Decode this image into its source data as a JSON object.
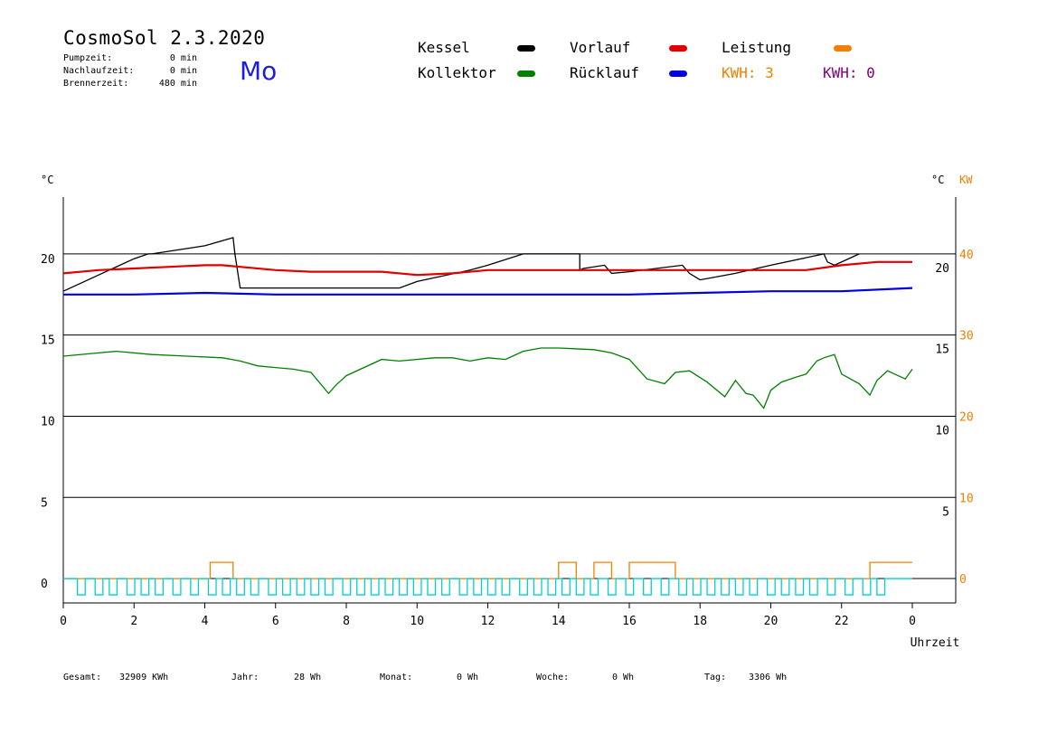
{
  "header": {
    "title": "CosmoSol 2.3.2020",
    "day": "Mo",
    "params": [
      {
        "label": "Pumpzeit:",
        "value": "0 min"
      },
      {
        "label": "Nachlaufzeit:",
        "value": "0 min"
      },
      {
        "label": "Brennerzeit:",
        "value": "480 min"
      }
    ]
  },
  "legend": [
    {
      "name": "Kessel",
      "color": "#000000"
    },
    {
      "name": "Vorlauf",
      "color": "#e00000"
    },
    {
      "name": "Leistung",
      "color": "#f08000"
    },
    {
      "name": "Kollektor",
      "color": "#008000"
    },
    {
      "name": "Rücklauf",
      "color": "#0000e0"
    }
  ],
  "kwh": [
    {
      "text": "KWH: 3",
      "color": "#f08000"
    },
    {
      "text": "KWH: 0",
      "color": "#800080"
    }
  ],
  "footer": {
    "gesamt_label": "Gesamt:",
    "gesamt_value": "32909 KWh",
    "jahr_label": "Jahr:",
    "jahr_value": "28 Wh",
    "monat_label": "Monat:",
    "monat_value": "0 Wh",
    "woche_label": "Woche:",
    "woche_value": "0 Wh",
    "tag_label": "Tag:",
    "tag_value": "3306 Wh"
  },
  "chart_data": {
    "type": "line",
    "left_axis": {
      "unit": "°C",
      "ticks": [
        "20",
        "15",
        "10",
        "5",
        "0"
      ],
      "range": [
        -1.5,
        23.5
      ]
    },
    "right_axis_temp": {
      "unit": "°C",
      "ticks": [
        "20",
        "15",
        "10",
        "5"
      ]
    },
    "right_axis_power": {
      "unit": "KW",
      "ticks": [
        "40",
        "30",
        "20",
        "10",
        "0"
      ],
      "range": [
        -3,
        47
      ]
    },
    "x_axis": {
      "label": "Uhrzeit",
      "ticks": [
        "0",
        "2",
        "4",
        "6",
        "8",
        "10",
        "12",
        "14",
        "16",
        "18",
        "20",
        "22",
        "0"
      ],
      "range": [
        0,
        24
      ]
    },
    "grid_lines_at": [
      20,
      15,
      10,
      5,
      0
    ],
    "series": [
      {
        "name": "Kessel",
        "color": "#000000",
        "x": [
          0,
          1,
          2,
          2.4,
          2.5,
          4,
          4.8,
          4.85,
          5,
          9.5,
          10,
          11.5,
          12,
          13,
          13.3,
          14.6,
          14.6,
          14.7,
          15.3,
          15.5,
          16,
          17.5,
          17.7,
          18,
          19,
          20,
          21.5,
          21.6,
          21.8,
          22.5
        ],
        "y": [
          17.7,
          18.7,
          19.7,
          20.0,
          20.0,
          20.5,
          21.0,
          20.0,
          17.9,
          17.9,
          18.3,
          19.0,
          19.3,
          20.0,
          20.0,
          20.0,
          19.0,
          19.1,
          19.3,
          18.8,
          18.9,
          19.3,
          18.8,
          18.4,
          18.8,
          19.3,
          20.0,
          19.5,
          19.3,
          20.0
        ]
      },
      {
        "name": "Vorlauf",
        "color": "#e00000",
        "x": [
          0,
          1,
          2,
          3,
          4,
          4.5,
          5,
          6,
          7,
          9,
          10,
          11,
          12,
          13,
          14,
          15,
          16,
          17,
          18,
          19,
          20,
          21,
          22,
          23,
          24
        ],
        "y": [
          18.8,
          19.0,
          19.1,
          19.2,
          19.3,
          19.3,
          19.2,
          19.0,
          18.9,
          18.9,
          18.7,
          18.8,
          19.0,
          19.0,
          19.0,
          19.0,
          19.0,
          19.0,
          19.0,
          19.0,
          19.0,
          19.0,
          19.3,
          19.5,
          19.5
        ]
      },
      {
        "name": "Rücklauf",
        "color": "#0000e0",
        "x": [
          0,
          2,
          4,
          6,
          8,
          10,
          12,
          14,
          16,
          18,
          20,
          22,
          24
        ],
        "y": [
          17.5,
          17.5,
          17.6,
          17.5,
          17.5,
          17.5,
          17.5,
          17.5,
          17.5,
          17.6,
          17.7,
          17.7,
          17.9
        ]
      },
      {
        "name": "Kollektor",
        "color": "#008000",
        "x": [
          0,
          1,
          1.5,
          2.5,
          3.5,
          4.5,
          5,
          5.5,
          6,
          6.5,
          7,
          7.5,
          7.7,
          8,
          9,
          9.5,
          10.5,
          11,
          11.5,
          12,
          12.5,
          13,
          13.5,
          14,
          15,
          15.5,
          16,
          16.5,
          17,
          17.3,
          17.7,
          18.2,
          18.7,
          19,
          19.3,
          19.5,
          19.8,
          20,
          20.3,
          20.7,
          21,
          21.3,
          21.5,
          21.8,
          22,
          22.5,
          22.8,
          23,
          23.3,
          23.5,
          23.8,
          24
        ],
        "y": [
          13.7,
          13.9,
          14.0,
          13.8,
          13.7,
          13.6,
          13.4,
          13.1,
          13.0,
          12.9,
          12.7,
          11.4,
          11.9,
          12.5,
          13.5,
          13.4,
          13.6,
          13.6,
          13.4,
          13.6,
          13.5,
          14.0,
          14.2,
          14.2,
          14.1,
          13.9,
          13.5,
          12.3,
          12.0,
          12.7,
          12.8,
          12.1,
          11.2,
          12.2,
          11.4,
          11.3,
          10.5,
          11.6,
          12.1,
          12.4,
          12.6,
          13.4,
          13.6,
          13.8,
          12.6,
          12.0,
          11.3,
          12.2,
          12.8,
          12.6,
          12.3,
          12.9
        ]
      },
      {
        "name": "Leistung",
        "color": "#f08000",
        "axis": "power",
        "x": [
          0,
          4.15,
          4.15,
          4.8,
          4.8,
          14.0,
          14.0,
          14.5,
          14.5,
          15.0,
          15.0,
          15.5,
          15.5,
          16.0,
          16.0,
          17.3,
          17.3,
          22.8,
          22.8,
          24
        ],
        "y": [
          0,
          0,
          2,
          2,
          0,
          0,
          2,
          2,
          0,
          0,
          2,
          2,
          0,
          0,
          2,
          2,
          0,
          0,
          2,
          2
        ]
      },
      {
        "name": "Pumpe",
        "color": "#00d0d0",
        "pulses_start_h": [
          0.4,
          0.9,
          1.3,
          1.8,
          2.2,
          2.6,
          3.1,
          3.6,
          4.1,
          4.5,
          4.9,
          5.3,
          5.8,
          6.2,
          6.6,
          7.0,
          7.4,
          7.9,
          8.3,
          8.7,
          9.1,
          9.5,
          9.9,
          10.3,
          10.7,
          11.2,
          11.6,
          12.0,
          12.4,
          12.9,
          13.3,
          13.7,
          14.1,
          14.5,
          14.9,
          15.4,
          15.9,
          16.4,
          16.9,
          17.4,
          17.8,
          18.2,
          18.6,
          19.0,
          19.4,
          19.9,
          20.3,
          20.7,
          21.1,
          21.6,
          22.1,
          22.6,
          23.0
        ],
        "pulse_width_h": 0.22
      }
    ]
  }
}
